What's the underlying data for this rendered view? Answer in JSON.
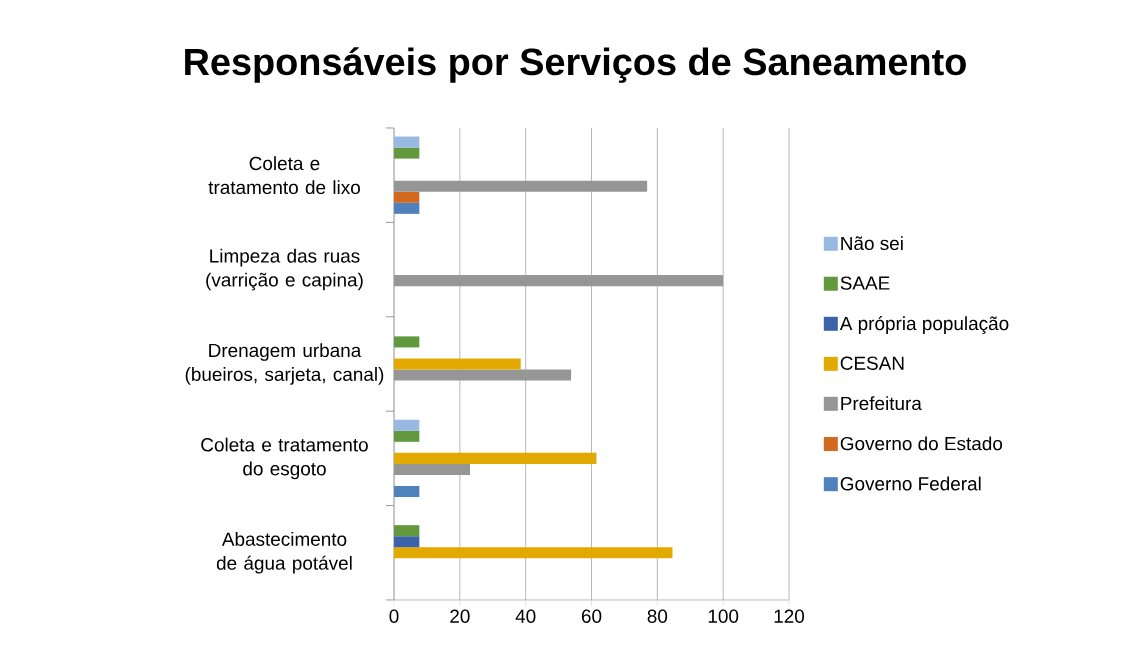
{
  "chart_data": {
    "type": "bar",
    "orientation": "horizontal",
    "title": "Responsáveis por Serviços de Saneamento",
    "categories": [
      "Coleta e tratamento de lixo",
      "Limpeza das ruas (varrição e capina)",
      "Drenagem urbana (bueiros, sarjeta, canal)",
      "Coleta e tratamento do esgoto",
      "Abastecimento de água potável"
    ],
    "series": [
      {
        "name": "Governo Federal",
        "color": "#4f81bd",
        "values": [
          7.7,
          null,
          null,
          7.7,
          null
        ]
      },
      {
        "name": "Governo do Estado",
        "color": "#d2691e",
        "values": [
          7.7,
          null,
          null,
          null,
          null
        ]
      },
      {
        "name": "Prefeitura",
        "color": "#969696",
        "values": [
          76.9,
          100,
          53.8,
          23.1,
          null
        ]
      },
      {
        "name": "CESAN",
        "color": "#e2aa00",
        "values": [
          null,
          null,
          38.5,
          61.5,
          84.6
        ]
      },
      {
        "name": "A própria população",
        "color": "#3c62aa",
        "values": [
          null,
          null,
          null,
          null,
          7.7
        ]
      },
      {
        "name": "SAAE",
        "color": "#62993e",
        "values": [
          7.7,
          null,
          7.7,
          7.7,
          7.7
        ]
      },
      {
        "name": "Não sei",
        "color": "#98b9e1",
        "values": [
          7.7,
          null,
          null,
          7.7,
          null
        ]
      }
    ],
    "xlim": [
      0,
      120
    ],
    "xticks": [
      0,
      20,
      40,
      60,
      80,
      100,
      120
    ],
    "grid": "x",
    "legend": "right"
  }
}
